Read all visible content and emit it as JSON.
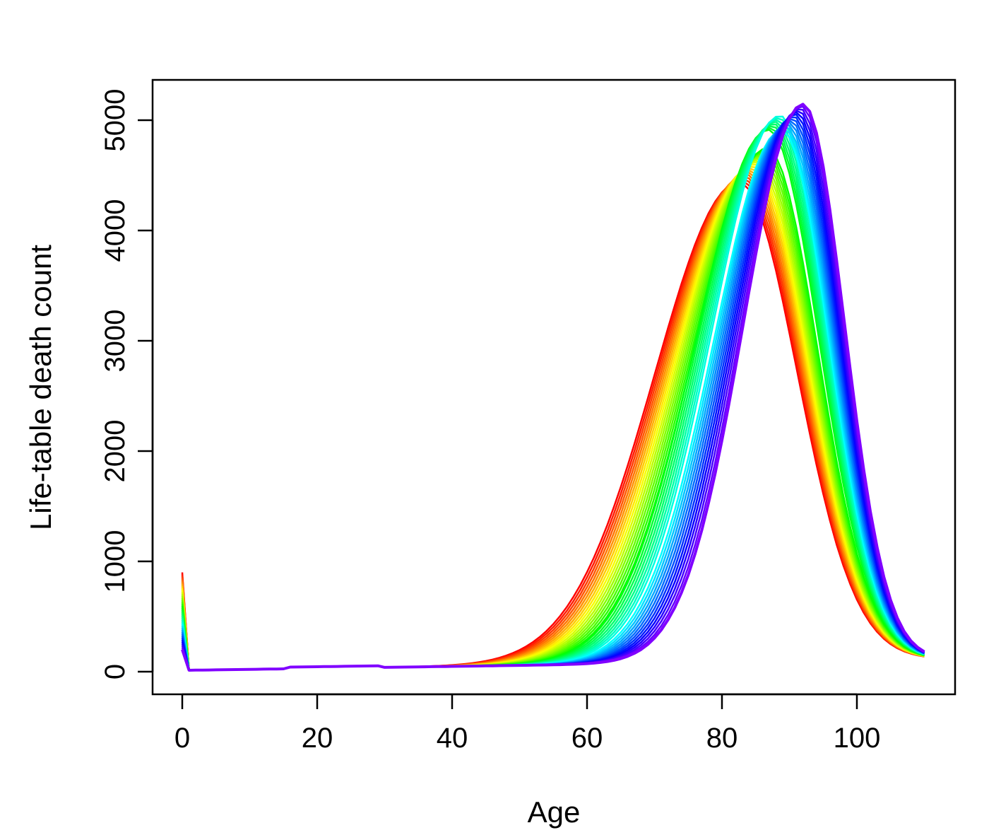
{
  "chart_data": {
    "type": "line",
    "xlabel": "Age",
    "ylabel": "Life-table death count",
    "xlim": [
      0,
      110
    ],
    "ylim": [
      0,
      5000
    ],
    "x_ticks": [
      0,
      20,
      40,
      60,
      80,
      100
    ],
    "y_ticks": [
      0,
      1000,
      2000,
      3000,
      4000,
      5000
    ],
    "x_tick_labels": [
      "0",
      "20",
      "40",
      "60",
      "80",
      "100"
    ],
    "y_tick_labels": [
      "0",
      "1000",
      "2000",
      "3000",
      "4000",
      "5000"
    ],
    "grid": false,
    "legend": "none",
    "color_scheme": "rainbow (red to violet)",
    "series_count": 40,
    "series": [
      {
        "first_color": "#ff0000",
        "infant_deaths": 900,
        "mode_age": 82.5,
        "peak": 4350,
        "sd": 10.5
      },
      {
        "last_color": "#8000ff",
        "infant_deaths": 200,
        "mode_age": 92,
        "peak": 5050,
        "sd": 7.5
      }
    ]
  }
}
